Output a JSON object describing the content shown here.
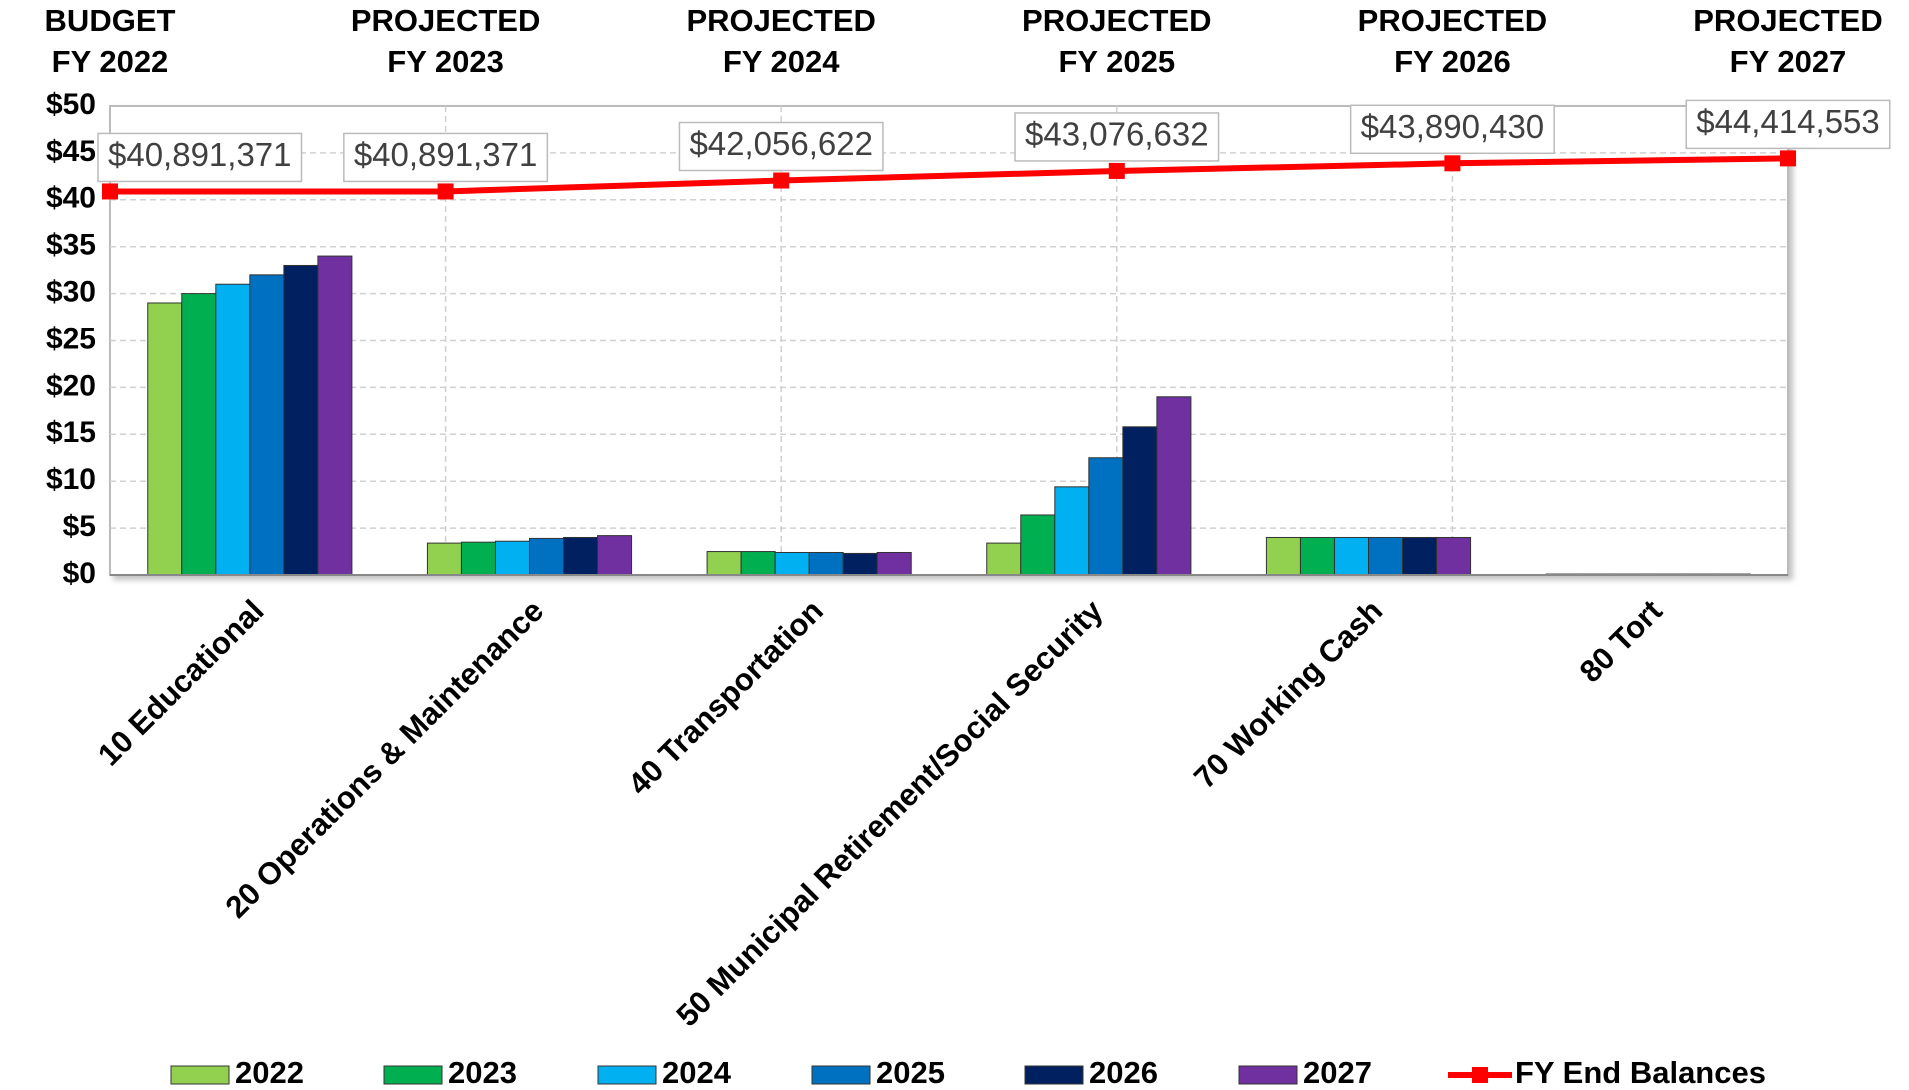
{
  "chart_data": {
    "type": "bar",
    "categories": [
      "10 Educational",
      "20 Operations & Maintenance",
      "40 Transportation",
      "50 Municipal Retirement/Social Security",
      "70 Working Cash",
      "80 Tort"
    ],
    "series": [
      {
        "name": "2022",
        "color": "#92d050",
        "values": [
          29,
          3.4,
          2.5,
          3.4,
          4.0,
          0.1
        ]
      },
      {
        "name": "2023",
        "color": "#00b050",
        "values": [
          30,
          3.5,
          2.5,
          6.4,
          4.0,
          0.1
        ]
      },
      {
        "name": "2024",
        "color": "#00b0f0",
        "values": [
          31,
          3.6,
          2.4,
          9.4,
          4.0,
          0.1
        ]
      },
      {
        "name": "2025",
        "color": "#0070c0",
        "values": [
          32,
          3.9,
          2.4,
          12.5,
          4.0,
          0.1
        ]
      },
      {
        "name": "2026",
        "color": "#002060",
        "values": [
          33,
          4.0,
          2.3,
          15.8,
          4.0,
          0.1
        ]
      },
      {
        "name": "2027",
        "color": "#7030a0",
        "values": [
          34,
          4.2,
          2.4,
          19.0,
          4.0,
          0.1
        ]
      }
    ],
    "line": {
      "type": "line",
      "name": "FY End Balances",
      "color": "#ff0000",
      "x": [
        [
          "BUDGET",
          "FY 2022"
        ],
        [
          "PROJECTED",
          "FY 2023"
        ],
        [
          "PROJECTED",
          "FY 2024"
        ],
        [
          "PROJECTED",
          "FY 2025"
        ],
        [
          "PROJECTED",
          "FY 2026"
        ],
        [
          "PROJECTED",
          "FY 2027"
        ]
      ],
      "values": [
        40.891371,
        40.891371,
        42.056622,
        43.076632,
        43.89043,
        44.414553
      ],
      "value_labels": [
        "$40,891,371",
        "$40,891,371",
        "$42,056,622",
        "$43,076,632",
        "$43,890,430",
        "$44,414,553"
      ]
    },
    "ylim": [
      0,
      50
    ],
    "yticks": [
      {
        "value": 0,
        "label": "$0"
      },
      {
        "value": 5,
        "label": "$5"
      },
      {
        "value": 10,
        "label": "$10"
      },
      {
        "value": 15,
        "label": "$15"
      },
      {
        "value": 20,
        "label": "$20"
      },
      {
        "value": 25,
        "label": "$25"
      },
      {
        "value": 30,
        "label": "$30"
      },
      {
        "value": 35,
        "label": "$35"
      },
      {
        "value": 40,
        "label": "$40"
      },
      {
        "value": 45,
        "label": "$45"
      },
      {
        "value": 50,
        "label": "$50"
      }
    ],
    "grid": true,
    "legend": "bottom"
  }
}
